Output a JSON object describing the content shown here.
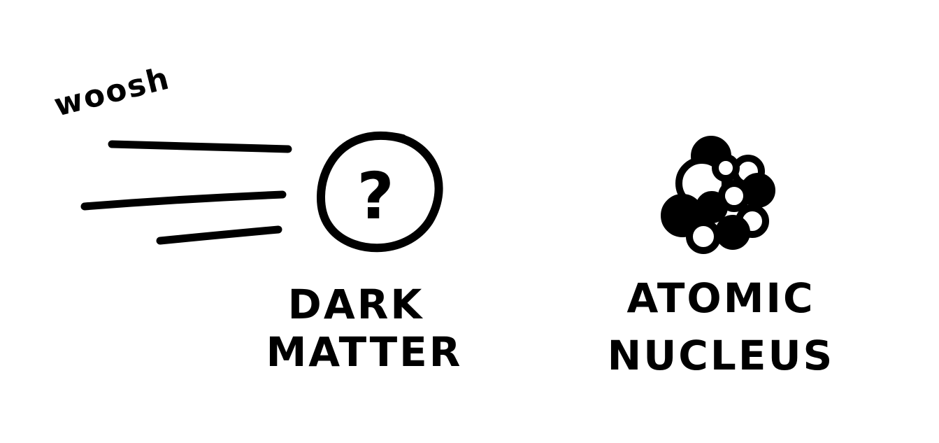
{
  "woosh": {
    "text": "woosh"
  },
  "dark_matter": {
    "symbol": "?",
    "label_line1": "DARK",
    "label_line2": "MATTER"
  },
  "atomic_nucleus": {
    "label_line1": "ATOMIC",
    "label_line2": "NUCLEUS"
  },
  "colors": {
    "ink": "#000000",
    "background": "#ffffff"
  }
}
